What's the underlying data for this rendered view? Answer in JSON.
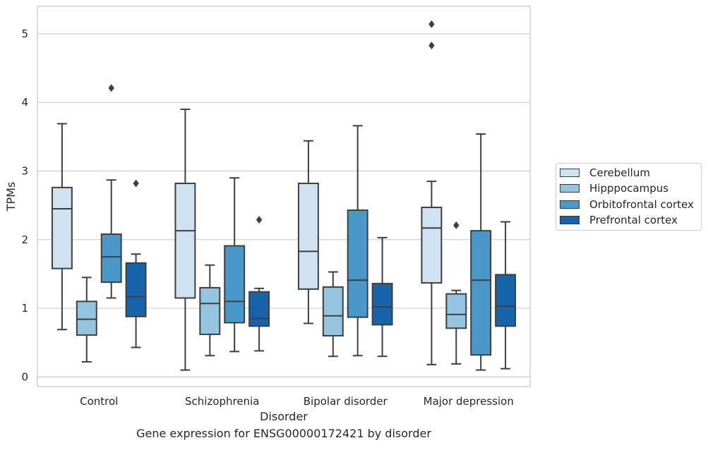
{
  "caption": "Gene expression for ENSG00000172421 by disorder",
  "chart_data": {
    "type": "box",
    "xlabel": "Disorder",
    "ylabel": "TPMs",
    "categories": [
      "Control",
      "Schizophrenia",
      "Bipolar disorder",
      "Major depression"
    ],
    "ylim": [
      -0.14,
      5.4
    ],
    "yticks": [
      0,
      1,
      2,
      3,
      4,
      5
    ],
    "grid": "horizontal",
    "legend_position": "right",
    "series": [
      {
        "name": "Cerebellum",
        "color": "#d0e1f2",
        "boxes": [
          {
            "whisker_low": 0.69,
            "q1": 1.58,
            "median": 2.45,
            "q3": 2.76,
            "whisker_high": 3.69,
            "outliers": []
          },
          {
            "whisker_low": 0.1,
            "q1": 1.15,
            "median": 2.13,
            "q3": 2.82,
            "whisker_high": 3.9,
            "outliers": []
          },
          {
            "whisker_low": 0.78,
            "q1": 1.28,
            "median": 1.83,
            "q3": 2.82,
            "whisker_high": 3.44,
            "outliers": []
          },
          {
            "whisker_low": 0.18,
            "q1": 1.37,
            "median": 2.17,
            "q3": 2.47,
            "whisker_high": 2.85,
            "outliers": [
              4.83,
              5.14
            ]
          }
        ]
      },
      {
        "name": "Hipppocampus",
        "color": "#94c4df",
        "boxes": [
          {
            "whisker_low": 0.22,
            "q1": 0.61,
            "median": 0.84,
            "q3": 1.1,
            "whisker_high": 1.45,
            "outliers": []
          },
          {
            "whisker_low": 0.31,
            "q1": 0.62,
            "median": 1.07,
            "q3": 1.3,
            "whisker_high": 1.63,
            "outliers": []
          },
          {
            "whisker_low": 0.3,
            "q1": 0.6,
            "median": 0.89,
            "q3": 1.31,
            "whisker_high": 1.53,
            "outliers": []
          },
          {
            "whisker_low": 0.19,
            "q1": 0.71,
            "median": 0.91,
            "q3": 1.21,
            "whisker_high": 1.26,
            "outliers": [
              2.21
            ]
          }
        ]
      },
      {
        "name": "Orbitofrontal cortex",
        "color": "#4a98c9",
        "boxes": [
          {
            "whisker_low": 1.15,
            "q1": 1.38,
            "median": 1.75,
            "q3": 2.08,
            "whisker_high": 2.87,
            "outliers": [
              4.21
            ]
          },
          {
            "whisker_low": 0.37,
            "q1": 0.79,
            "median": 1.1,
            "q3": 1.91,
            "whisker_high": 2.9,
            "outliers": []
          },
          {
            "whisker_low": 0.31,
            "q1": 0.87,
            "median": 1.41,
            "q3": 2.43,
            "whisker_high": 3.66,
            "outliers": []
          },
          {
            "whisker_low": 0.1,
            "q1": 0.32,
            "median": 1.41,
            "q3": 2.13,
            "whisker_high": 3.54,
            "outliers": []
          }
        ]
      },
      {
        "name": "Prefrontal cortex",
        "color": "#1764ab",
        "boxes": [
          {
            "whisker_low": 0.43,
            "q1": 0.88,
            "median": 1.17,
            "q3": 1.66,
            "whisker_high": 1.79,
            "outliers": [
              2.82
            ]
          },
          {
            "whisker_low": 0.38,
            "q1": 0.74,
            "median": 0.85,
            "q3": 1.24,
            "whisker_high": 1.29,
            "outliers": [
              2.29
            ]
          },
          {
            "whisker_low": 0.3,
            "q1": 0.76,
            "median": 1.02,
            "q3": 1.36,
            "whisker_high": 2.03,
            "outliers": []
          },
          {
            "whisker_low": 0.12,
            "q1": 0.74,
            "median": 1.03,
            "q3": 1.49,
            "whisker_high": 2.26,
            "outliers": []
          }
        ]
      }
    ]
  }
}
